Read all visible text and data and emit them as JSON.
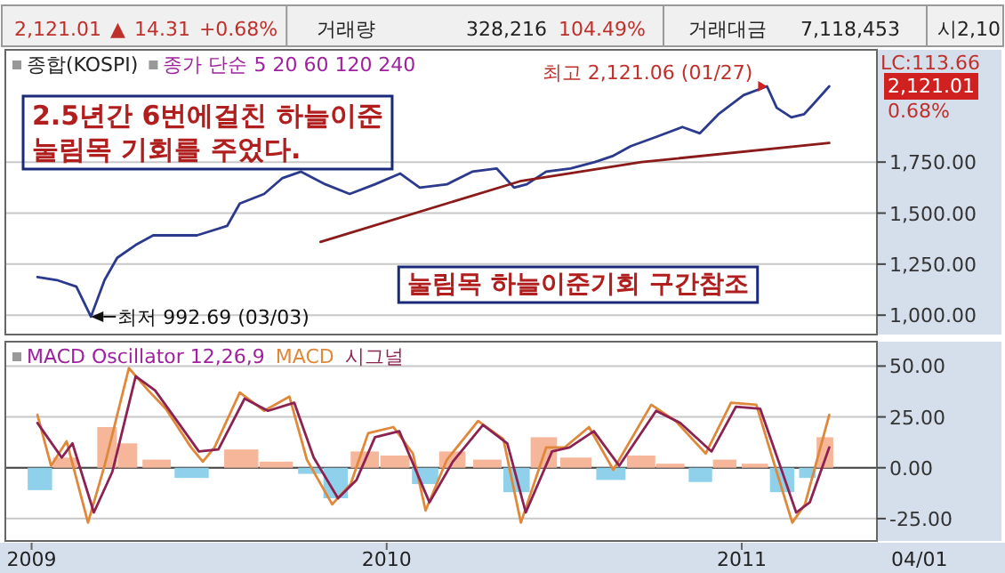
{
  "chart_data": [
    {
      "type": "other",
      "annotations": [
        "2,121.01",
        "▲",
        "14.31",
        "+0.68%",
        "거래량",
        "328,216",
        "104.49%",
        "거래대금",
        "7,118,453",
        "시2,10"
      ]
    },
    {
      "type": "line",
      "title": "종합(KOSPI)",
      "subtitle": "종가 단순 5 20 60 120 240",
      "xlim": [
        "2008-12-05",
        "2011-05-20"
      ],
      "ylim": [
        905,
        2300
      ],
      "yticks": [
        {
          "value": 1000,
          "label": "1,000.00"
        },
        {
          "value": 1250,
          "label": "1,250.00"
        },
        {
          "value": 1500,
          "label": "1,500.00"
        },
        {
          "value": 1750,
          "label": "1,750.00"
        }
      ],
      "grid": "y",
      "tick_labels": "y",
      "series": [
        {
          "color": "#2b3a8c",
          "x": [
            "2009-01-07",
            "2009-01-27",
            "2009-02-16",
            "2009-03-03",
            "2009-03-17",
            "2009-03-30",
            "2009-04-18",
            "2009-05-06",
            "2009-05-25",
            "2009-06-20",
            "2009-07-21",
            "2009-08-03",
            "2009-08-28",
            "2009-09-16",
            "2009-10-05",
            "2009-10-30",
            "2009-11-24",
            "2009-12-20",
            "2010-01-15",
            "2010-02-04",
            "2010-03-04",
            "2010-03-30",
            "2010-04-24",
            "2010-05-12",
            "2010-05-25",
            "2010-06-14",
            "2010-07-09",
            "2010-08-03",
            "2010-08-22",
            "2010-09-09",
            "2010-10-06",
            "2010-11-01",
            "2010-11-19",
            "2010-12-08",
            "2011-01-03",
            "2011-01-27",
            "2011-02-06",
            "2011-02-21",
            "2011-03-06",
            "2011-03-15",
            "2011-04-01"
          ],
          "values": [
            1187,
            1172,
            1140,
            992.69,
            1172,
            1281,
            1344,
            1391,
            1391,
            1391,
            1437,
            1547,
            1594,
            1672,
            1703,
            1641,
            1594,
            1641,
            1694,
            1625,
            1641,
            1703,
            1719,
            1625,
            1641,
            1703,
            1719,
            1750,
            1781,
            1828,
            1875,
            1922,
            1891,
            1984,
            2078,
            2121.06,
            2016,
            1969,
            1984,
            2031,
            2121.01
          ]
        },
        {
          "color": "#8b1a1a",
          "x": [
            "2009-10-25",
            "2010-05-18",
            "2010-09-20",
            "2011-04-01"
          ],
          "values": [
            1359,
            1656,
            1750,
            1844
          ]
        }
      ],
      "annotations": [
        "2.5년간 6번에걸친 하늘이준 눌림목 기회를 주었다.",
        "눌림목 하늘이준기회 구간참조",
        {
          "text": "최고 2,121.06 (01/27)",
          "x": "2011-01-27",
          "y": 2121.06
        },
        {
          "text": "최저 992.69 (03/03)",
          "x": "2009-03-03",
          "y": 992.69
        },
        "LC:113.66",
        "2,121.01",
        "0.68%"
      ]
    },
    {
      "type": "line",
      "title": "MACD Oscillator 12,26,9",
      "xlim": [
        "2008-12-05",
        "2011-05-20"
      ],
      "ylim": [
        -36,
        62
      ],
      "yticks": [
        {
          "value": -25,
          "label": "-25.00"
        },
        {
          "value": 0,
          "label": "0.00"
        },
        {
          "value": 25,
          "label": "25.00"
        },
        {
          "value": 50,
          "label": "50.00"
        }
      ],
      "xticks": [
        {
          "value": "2009-01-01",
          "label": "2009"
        },
        {
          "value": "2010-01-01",
          "label": "2010"
        },
        {
          "value": "2011-01-01",
          "label": "2011"
        }
      ],
      "grid": "y",
      "legend": "top left",
      "ref_lines": [
        {
          "axis": "y",
          "value": 0,
          "color": "#444444"
        }
      ],
      "series": [
        {
          "type": "bar",
          "x": [
            "2009-01-10",
            "2009-02-05",
            "2009-03-20",
            "2009-04-10",
            "2009-05-10",
            "2009-06-15",
            "2009-08-05",
            "2009-09-10",
            "2009-10-15",
            "2009-11-10",
            "2009-12-10",
            "2010-01-10",
            "2010-02-10",
            "2010-03-10",
            "2010-04-15",
            "2010-05-15",
            "2010-06-12",
            "2010-07-15",
            "2010-08-20",
            "2010-09-20",
            "2010-10-20",
            "2010-11-20",
            "2010-12-15",
            "2011-01-15",
            "2011-02-12",
            "2011-03-10",
            "2011-03-28"
          ],
          "values": [
            -11,
            5,
            20,
            12,
            4,
            -5,
            9,
            3,
            -3,
            -15,
            8,
            6,
            -8,
            8,
            4,
            -12,
            15,
            5,
            -6,
            6,
            2,
            -7,
            4,
            2,
            -12,
            -5,
            15
          ],
          "colors": [
            "#8fd0ea",
            "#f6b69a",
            "#f6b69a",
            "#f6b69a",
            "#f6b69a",
            "#8fd0ea",
            "#f6b69a",
            "#f6b69a",
            "#8fd0ea",
            "#8fd0ea",
            "#f6b69a",
            "#f6b69a",
            "#8fd0ea",
            "#f6b69a",
            "#f6b69a",
            "#8fd0ea",
            "#f6b69a",
            "#f6b69a",
            "#8fd0ea",
            "#f6b69a",
            "#f6b69a",
            "#8fd0ea",
            "#f6b69a",
            "#f6b69a",
            "#8fd0ea",
            "#8fd0ea",
            "#f6b69a"
          ]
        },
        {
          "name": "MACD",
          "color": "#e0883a",
          "x": [
            "2009-01-07",
            "2009-01-21",
            "2009-02-06",
            "2009-02-28",
            "2009-03-17",
            "2009-04-11",
            "2009-05-01",
            "2009-05-19",
            "2009-06-14",
            "2009-06-26",
            "2009-07-08",
            "2009-08-03",
            "2009-08-28",
            "2009-09-23",
            "2009-10-11",
            "2009-11-06",
            "2009-11-25",
            "2009-12-13",
            "2010-01-08",
            "2010-01-28",
            "2010-02-10",
            "2010-03-04",
            "2010-04-05",
            "2010-05-01",
            "2010-05-19",
            "2010-06-14",
            "2010-07-03",
            "2010-07-28",
            "2010-08-22",
            "2010-09-30",
            "2010-10-25",
            "2010-11-25",
            "2010-12-21",
            "2011-01-16",
            "2011-02-04",
            "2011-02-22",
            "2011-03-07",
            "2011-04-01"
          ],
          "values": [
            26,
            1,
            13,
            -27,
            1,
            49,
            38,
            29,
            10,
            3,
            10,
            37,
            28,
            35,
            4,
            -18,
            -8,
            17,
            20,
            7,
            -21,
            4,
            23,
            14,
            -27,
            10,
            10,
            20,
            -1,
            31,
            23,
            7,
            32,
            31,
            1,
            -27,
            -18,
            26
          ]
        },
        {
          "name": "시그널",
          "color": "#8b2252",
          "x": [
            "2009-01-07",
            "2009-02-01",
            "2009-02-12",
            "2009-03-06",
            "2009-03-25",
            "2009-04-18",
            "2009-05-08",
            "2009-06-01",
            "2009-06-22",
            "2009-07-12",
            "2009-08-08",
            "2009-09-01",
            "2009-09-28",
            "2009-10-18",
            "2009-11-12",
            "2009-12-01",
            "2009-12-20",
            "2010-01-14",
            "2010-02-14",
            "2010-03-10",
            "2010-04-10",
            "2010-05-05",
            "2010-05-24",
            "2010-06-20",
            "2010-07-08",
            "2010-08-02",
            "2010-08-28",
            "2010-10-05",
            "2010-10-30",
            "2010-12-01",
            "2010-12-26",
            "2011-01-20",
            "2011-02-08",
            "2011-02-26",
            "2011-03-12",
            "2011-04-01"
          ],
          "values": [
            22,
            5,
            12,
            -22,
            -2,
            45,
            38,
            22,
            8,
            9,
            34,
            28,
            32,
            5,
            -15,
            -6,
            15,
            18,
            -17,
            3,
            21,
            12,
            -22,
            8,
            10,
            18,
            1,
            28,
            22,
            8,
            30,
            29,
            3,
            -22,
            -17,
            10
          ]
        }
      ],
      "annotations": [
        "04/01"
      ]
    }
  ]
}
